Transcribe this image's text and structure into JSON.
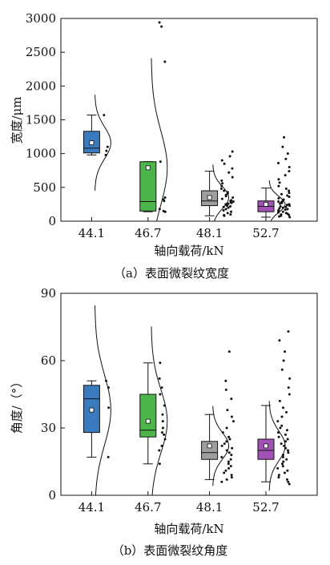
{
  "chart_data": [
    {
      "type": "box",
      "caption": "（a）表面微裂纹宽度",
      "xlabel": "轴向载荷/kN",
      "ylabel": "宽度/μm",
      "ylim": [
        0,
        3000
      ],
      "yticks": [
        0,
        500,
        1000,
        1500,
        2000,
        2500,
        3000
      ],
      "categories": [
        "44.1",
        "46.7",
        "48.1",
        "52.7"
      ],
      "boxes": [
        {
          "color": "#3a7bbf",
          "whisker_low": 980,
          "q1": 1010,
          "median": 1080,
          "q3": 1330,
          "whisker_high": 1570,
          "mean": 1160,
          "points": [
            1570,
            1100,
            1040,
            980
          ]
        },
        {
          "color": "#4cb64a",
          "whisker_low": 140,
          "q1": 150,
          "median": 290,
          "q3": 880,
          "whisker_high": 880,
          "mean": 790,
          "points": [
            2940,
            2880,
            2360,
            880,
            350,
            320,
            300,
            180,
            150,
            140
          ]
        },
        {
          "color": "#9e9e9e",
          "whisker_low": 80,
          "q1": 230,
          "median": 300,
          "q3": 450,
          "whisker_high": 740,
          "mean": 350,
          "points": [
            1030,
            960,
            900,
            850,
            780,
            720,
            650,
            600,
            560,
            520,
            480,
            450,
            430,
            410,
            390,
            370,
            350,
            330,
            310,
            300,
            290,
            280,
            270,
            260,
            250,
            240,
            230,
            220,
            210,
            200,
            180,
            160,
            140,
            120,
            100,
            90,
            80
          ]
        },
        {
          "color": "#a251b5",
          "whisker_low": 60,
          "q1": 140,
          "median": 220,
          "q3": 300,
          "whisker_high": 490,
          "mean": 250,
          "points": [
            1240,
            1100,
            1000,
            920,
            860,
            800,
            740,
            680,
            620,
            570,
            520,
            480,
            450,
            420,
            400,
            380,
            360,
            340,
            320,
            300,
            290,
            280,
            270,
            260,
            250,
            240,
            230,
            220,
            210,
            200,
            190,
            180,
            170,
            160,
            150,
            140,
            130,
            120,
            110,
            100,
            90,
            80,
            70,
            60
          ]
        }
      ]
    },
    {
      "type": "box",
      "caption": "（b）表面微裂纹角度",
      "xlabel": "轴向载荷/kN",
      "ylabel": "角度/（°）",
      "ylim": [
        0,
        90
      ],
      "yticks": [
        0,
        30,
        60,
        90
      ],
      "categories": [
        "44.1",
        "46.7",
        "48.1",
        "52.7"
      ],
      "boxes": [
        {
          "color": "#3a7bbf",
          "whisker_low": 17,
          "q1": 28,
          "median": 43,
          "q3": 49,
          "whisker_high": 51,
          "mean": 38,
          "points": [
            51,
            48,
            39,
            17
          ]
        },
        {
          "color": "#4cb64a",
          "whisker_low": 14,
          "q1": 26,
          "median": 29,
          "q3": 45,
          "whisker_high": 59,
          "mean": 33,
          "points": [
            59,
            52,
            48,
            45,
            40,
            36,
            33,
            30,
            28,
            27,
            25,
            22,
            20,
            14
          ]
        },
        {
          "color": "#9e9e9e",
          "whisker_low": 7,
          "q1": 16,
          "median": 19,
          "q3": 24,
          "whisker_high": 36,
          "mean": 22,
          "points": [
            64,
            51,
            47,
            43,
            38,
            35,
            33,
            30,
            28,
            26,
            25,
            24,
            23,
            22,
            21,
            20,
            19,
            18,
            17,
            16,
            15,
            14,
            13,
            12,
            11,
            10,
            9,
            8,
            7,
            6
          ]
        },
        {
          "color": "#a251b5",
          "whisker_low": 6,
          "q1": 16,
          "median": 20,
          "q3": 25,
          "whisker_high": 40,
          "mean": 22,
          "points": [
            73,
            69,
            64,
            60,
            56,
            52,
            48,
            45,
            42,
            39,
            37,
            35,
            33,
            31,
            30,
            29,
            28,
            27,
            26,
            25,
            24,
            23,
            22,
            21,
            20,
            19,
            18,
            17,
            16,
            15,
            14,
            13,
            12,
            11,
            10,
            9,
            8,
            7,
            6,
            5
          ]
        }
      ]
    }
  ]
}
